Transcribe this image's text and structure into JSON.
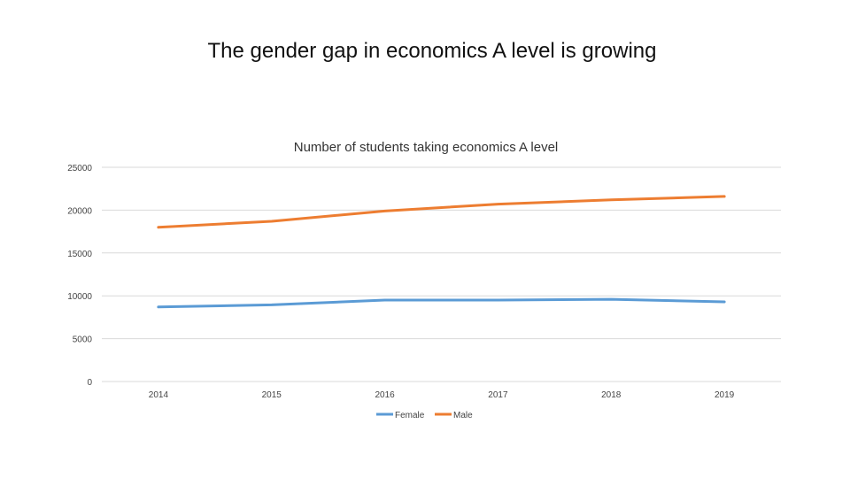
{
  "slide": {
    "title": "The gender gap in economics A level is growing"
  },
  "chart_data": {
    "type": "line",
    "title": "Number of students taking economics A level",
    "x": [
      "2014",
      "2015",
      "2016",
      "2017",
      "2018",
      "2019"
    ],
    "yticks": [
      "0",
      "5000",
      "10000",
      "15000",
      "20000",
      "25000"
    ],
    "ylim": [
      0,
      25000
    ],
    "grid": true,
    "legend": "bottom",
    "series": [
      {
        "name": "Female",
        "color": "#5b9bd5",
        "values": [
          8700,
          8950,
          9500,
          9500,
          9600,
          9300
        ]
      },
      {
        "name": "Male",
        "color": "#ed7d31",
        "values": [
          18000,
          18700,
          19900,
          20700,
          21200,
          21600
        ]
      }
    ]
  }
}
